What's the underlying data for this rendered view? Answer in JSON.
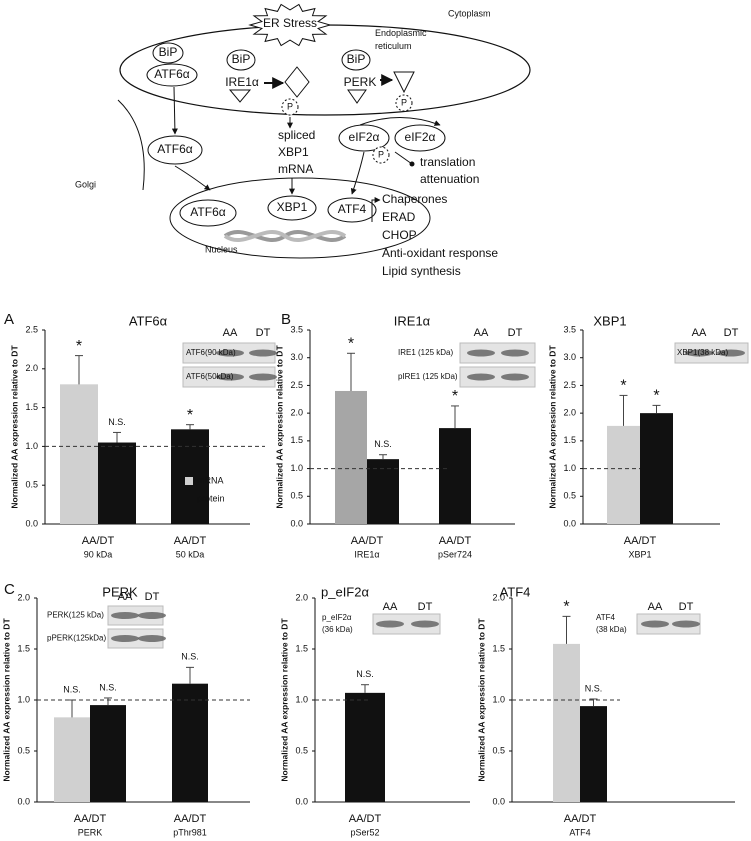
{
  "diagram": {
    "stress": "ER Stress",
    "cytoplasm": "Cytoplasm",
    "er_label": [
      "Endoplasmic",
      "reticulum"
    ],
    "golgi": "Golgi",
    "nucleus": "Nucleus",
    "er_proteins": [
      {
        "chaperone": "BiP",
        "sensor": "ATF6α"
      },
      {
        "chaperone": "BiP",
        "sensor": "IRE1α"
      },
      {
        "chaperone": "BiP",
        "sensor": "PERK"
      }
    ],
    "phospho": [
      "P",
      "P",
      "P"
    ],
    "cleaved": "ATF6α",
    "spliced": [
      "spliced",
      "XBP1",
      "mRNA"
    ],
    "eif2": [
      "eIF2α",
      "eIF2α"
    ],
    "translation": [
      "translation",
      "attenuation"
    ],
    "nuclear_factors": [
      "ATF6α",
      "XBP1",
      "ATF4"
    ],
    "outputs": [
      "Chaperones",
      "ERAD",
      "CHOP",
      "Anti-oxidant response",
      "Lipid synthesis"
    ]
  },
  "chart_data": [
    {
      "type": "bar",
      "panel": "A",
      "title": "ATF6α",
      "ylabel": "Normalized AA expression relative to DT",
      "categories": [
        "AA/DT",
        "AA/DT"
      ],
      "subcategories": [
        "90 kDa",
        "50 kDa"
      ],
      "series": [
        {
          "name": "mRNA",
          "color": "#d0d0d0",
          "values": [
            1.8,
            null
          ],
          "errors": [
            0.37,
            null
          ],
          "significance": [
            "*",
            null
          ]
        },
        {
          "name": "protein",
          "color": "#111111",
          "values": [
            1.05,
            1.22
          ],
          "errors": [
            0.13,
            0.06
          ],
          "significance": [
            "N.S.",
            "*"
          ]
        }
      ],
      "ylim": [
        0,
        2.5
      ],
      "yticks": [
        {
          "value": 0,
          "label": "0.0"
        },
        {
          "value": 0.5,
          "label": "0.5"
        },
        {
          "value": 1,
          "label": "1.0"
        },
        {
          "value": 1.5,
          "label": "1.5"
        },
        {
          "value": 2,
          "label": "2.0"
        },
        {
          "value": 2.5,
          "label": "2.5"
        }
      ],
      "reference_line": 1,
      "legend": "right",
      "blot": {
        "lanes": [
          "AA",
          "DT"
        ],
        "bands": [
          "ATF6(90 kDa)",
          "ATF6(50kDa)"
        ]
      }
    },
    {
      "type": "bar",
      "panel": "B",
      "title": "IRE1α",
      "ylabel": "Normalized AA expression relative to DT",
      "categories": [
        "AA/DT",
        "AA/DT"
      ],
      "subcategories": [
        "IRE1α",
        "pSer724"
      ],
      "series": [
        {
          "color": "#a6a6a6",
          "values": [
            2.4,
            null
          ],
          "errors": [
            0.68,
            null
          ],
          "significance": [
            "*",
            null
          ]
        },
        {
          "color": "#111111",
          "values": [
            1.17,
            1.73
          ],
          "errors": [
            0.08,
            0.4
          ],
          "significance": [
            "N.S.",
            "*"
          ]
        }
      ],
      "ylim": [
        0,
        3.5
      ],
      "yticks": [
        {
          "value": 0,
          "label": "0.0"
        },
        {
          "value": 0.5,
          "label": "0.5"
        },
        {
          "value": 1,
          "label": "1.0"
        },
        {
          "value": 1.5,
          "label": "1.5"
        },
        {
          "value": 2,
          "label": "2.0"
        },
        {
          "value": 2.5,
          "label": "2.5"
        },
        {
          "value": 3,
          "label": "3.0"
        },
        {
          "value": 3.5,
          "label": "3.5"
        }
      ],
      "reference_line": 1,
      "blot": {
        "lanes": [
          "AA",
          "DT"
        ],
        "bands": [
          "IRE1 (125 kDa)",
          "pIRE1 (125 kDa)"
        ]
      }
    },
    {
      "type": "bar",
      "title": "XBP1",
      "ylabel": "Normalized AA expression relative to DT",
      "categories": [
        "AA/DT"
      ],
      "subcategories": [
        "XBP1"
      ],
      "series": [
        {
          "color": "#d0d0d0",
          "values": [
            1.77
          ],
          "errors": [
            0.55
          ],
          "significance": [
            "*"
          ]
        },
        {
          "color": "#111111",
          "values": [
            2.0
          ],
          "errors": [
            0.14
          ],
          "significance": [
            "*"
          ]
        }
      ],
      "ylim": [
        0,
        3.5
      ],
      "yticks": [
        {
          "value": 0,
          "label": "0.0"
        },
        {
          "value": 0.5,
          "label": "0.5"
        },
        {
          "value": 1,
          "label": "1.0"
        },
        {
          "value": 1.5,
          "label": "1.5"
        },
        {
          "value": 2,
          "label": "2.0"
        },
        {
          "value": 2.5,
          "label": "2.5"
        },
        {
          "value": 3,
          "label": "3.0"
        },
        {
          "value": 3.5,
          "label": "3.5"
        }
      ],
      "reference_line": 1,
      "blot": {
        "lanes": [
          "AA",
          "DT"
        ],
        "bands": [
          "XBP1(38 kDa)"
        ]
      }
    },
    {
      "type": "bar",
      "panel": "C",
      "title": "PERK",
      "ylabel": "Normalized AA expression relative to DT",
      "categories": [
        "AA/DT",
        "AA/DT"
      ],
      "subcategories": [
        "PERK",
        "pThr981"
      ],
      "series": [
        {
          "color": "#d0d0d0",
          "values": [
            0.83,
            null
          ],
          "errors": [
            0.17,
            null
          ],
          "significance": [
            "N.S.",
            null
          ]
        },
        {
          "color": "#111111",
          "values": [
            0.95,
            1.16
          ],
          "errors": [
            0.07,
            0.16
          ],
          "significance": [
            "N.S.",
            "N.S."
          ]
        }
      ],
      "ylim": [
        0,
        2
      ],
      "yticks": [
        {
          "value": 0,
          "label": "0.0"
        },
        {
          "value": 0.5,
          "label": "0.5"
        },
        {
          "value": 1,
          "label": "1.0"
        },
        {
          "value": 1.5,
          "label": "1.5"
        },
        {
          "value": 2,
          "label": "2.0"
        }
      ],
      "reference_line": 1,
      "blot": {
        "lanes": [
          "AA",
          "DT"
        ],
        "bands": [
          "PERK(125 kDa)",
          "pPERK(125kDa)"
        ]
      }
    },
    {
      "type": "bar",
      "title": "p_eIF2α",
      "ylabel": "Normalized AA expression relative to DT",
      "categories": [
        "AA/DT"
      ],
      "subcategories": [
        "pSer52"
      ],
      "series": [
        {
          "color": "#111111",
          "values": [
            1.07
          ],
          "errors": [
            0.08
          ],
          "significance": [
            "N.S."
          ]
        }
      ],
      "ylim": [
        0,
        2
      ],
      "yticks": [
        {
          "value": 0,
          "label": "0.0"
        },
        {
          "value": 0.5,
          "label": "0.5"
        },
        {
          "value": 1,
          "label": "1.0"
        },
        {
          "value": 1.5,
          "label": "1.5"
        },
        {
          "value": 2,
          "label": "2.0"
        }
      ],
      "reference_line": 1,
      "blot": {
        "lanes": [
          "AA",
          "DT"
        ],
        "bands": [
          [
            "p_eIF2α",
            "(36 kDa)"
          ]
        ]
      }
    },
    {
      "type": "bar",
      "title": "ATF4",
      "ylabel": "Normalized AA expression relative to DT",
      "categories": [
        "AA/DT"
      ],
      "subcategories": [
        "ATF4"
      ],
      "series": [
        {
          "color": "#d0d0d0",
          "values": [
            1.55
          ],
          "errors": [
            0.27
          ],
          "significance": [
            "*"
          ]
        },
        {
          "color": "#111111",
          "values": [
            0.94
          ],
          "errors": [
            0.07
          ],
          "significance": [
            "N.S."
          ]
        }
      ],
      "ylim": [
        0,
        2
      ],
      "yticks": [
        {
          "value": 0,
          "label": "0.0"
        },
        {
          "value": 0.5,
          "label": "0.5"
        },
        {
          "value": 1,
          "label": "1.0"
        },
        {
          "value": 1.5,
          "label": "1.5"
        },
        {
          "value": 2,
          "label": "2.0"
        }
      ],
      "reference_line": 1,
      "blot": {
        "lanes": [
          "AA",
          "DT"
        ],
        "bands": [
          [
            "ATF4",
            "(38 kDa)"
          ]
        ]
      }
    }
  ]
}
